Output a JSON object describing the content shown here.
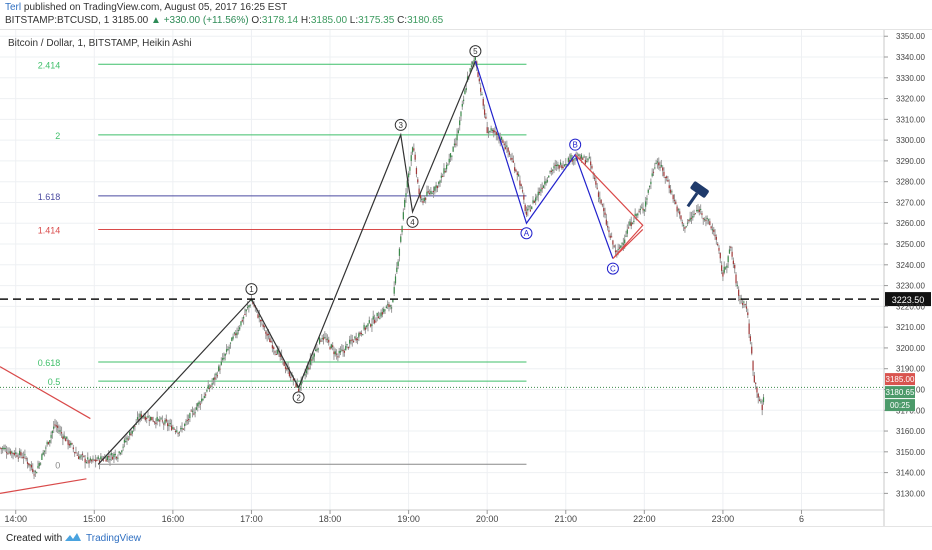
{
  "header": {
    "author": "Terl",
    "published_text": "published on TradingView.com, August 05, 2017 16:25 EST",
    "symbol": "BITSTAMP:BTCUSD, 1",
    "last": "3185.00",
    "change": "+330.00 (+11.56%)",
    "o_label": "O:",
    "o_value": "3178.14",
    "h_label": "H:",
    "h_value": "3185.00",
    "l_label": "L:",
    "l_value": "3175.35",
    "c_label": "C:",
    "c_value": "3180.65"
  },
  "legend": {
    "title": "Bitcoin / Dollar, 1, BITSTAMP, Heikin Ashi"
  },
  "footer": {
    "created_with": "Created with",
    "brand": "TradingView"
  },
  "colors": {
    "up": "#3b8a4a",
    "down": "#a33a3a",
    "grid": "#eef0f3",
    "fib_green": "#3fbf6a",
    "fib_blue": "#4a4aa0",
    "fib_red": "#d94a4a",
    "wave_blue": "#2222cc",
    "gavel": "#1f3a6b"
  },
  "chart_data": {
    "type": "candlestick",
    "title": "Bitcoin / Dollar, 1, BITSTAMP, Heikin Ashi",
    "y_ticks": [
      "3130.00",
      "3140.00",
      "3150.00",
      "3160.00",
      "3170.00",
      "3180.00",
      "3190.00",
      "3200.00",
      "3210.00",
      "3220.00",
      "3230.00",
      "3240.00",
      "3250.00",
      "3260.00",
      "3270.00",
      "3280.00",
      "3290.00",
      "3300.00",
      "3310.00",
      "3320.00",
      "3330.00",
      "3340.00",
      "3350.00"
    ],
    "y_range": [
      3122,
      3353
    ],
    "x_ticks": [
      "14:00",
      "15:00",
      "16:00",
      "17:00",
      "18:00",
      "19:00",
      "20:00",
      "21:00",
      "22:00",
      "23:00",
      "6"
    ],
    "x_range_hours": [
      13.8,
      25.05
    ],
    "price_path": [
      [
        13.8,
        3152
      ],
      [
        14.1,
        3148
      ],
      [
        14.25,
        3140
      ],
      [
        14.5,
        3163
      ],
      [
        14.8,
        3148
      ],
      [
        14.95,
        3145
      ],
      [
        15.3,
        3149
      ],
      [
        15.6,
        3168
      ],
      [
        16.0,
        3162
      ],
      [
        16.1,
        3160
      ],
      [
        16.5,
        3183
      ],
      [
        17.0,
        3223
      ],
      [
        17.2,
        3206
      ],
      [
        17.5,
        3187
      ],
      [
        17.6,
        3180
      ],
      [
        17.9,
        3206
      ],
      [
        18.1,
        3196
      ],
      [
        18.4,
        3208
      ],
      [
        18.8,
        3222
      ],
      [
        18.95,
        3270
      ],
      [
        19.05,
        3298
      ],
      [
        19.15,
        3270
      ],
      [
        19.4,
        3280
      ],
      [
        19.6,
        3298
      ],
      [
        19.75,
        3330
      ],
      [
        19.85,
        3340
      ],
      [
        20.0,
        3305
      ],
      [
        20.2,
        3300
      ],
      [
        20.4,
        3283
      ],
      [
        20.5,
        3264
      ],
      [
        20.8,
        3285
      ],
      [
        21.1,
        3292
      ],
      [
        21.3,
        3290
      ],
      [
        21.45,
        3270
      ],
      [
        21.55,
        3255
      ],
      [
        21.65,
        3245
      ],
      [
        21.85,
        3262
      ],
      [
        22.0,
        3268
      ],
      [
        22.15,
        3291
      ],
      [
        22.3,
        3280
      ],
      [
        22.5,
        3258
      ],
      [
        22.7,
        3267
      ],
      [
        22.9,
        3255
      ],
      [
        23.0,
        3235
      ],
      [
        23.1,
        3248
      ],
      [
        23.2,
        3225
      ],
      [
        23.3,
        3220
      ],
      [
        23.4,
        3185
      ],
      [
        23.5,
        3170
      ],
      [
        23.53,
        3180
      ]
    ],
    "fib_levels": [
      {
        "label": "2.414",
        "value": 3336.5,
        "color": "#3fbf6a"
      },
      {
        "label": "2",
        "value": 3302.5,
        "color": "#3fbf6a"
      },
      {
        "label": "1.618",
        "value": 3273.2,
        "color": "#4a4aa0"
      },
      {
        "label": "1.414",
        "value": 3257.0,
        "color": "#d94a4a"
      },
      {
        "label": "0.618",
        "value": 3193.2,
        "color": "#3fbf6a"
      },
      {
        "label": "0.5",
        "value": 3184.0,
        "color": "#3fbf6a"
      },
      {
        "label": "0",
        "value": 3144.0,
        "color": "#888888"
      }
    ],
    "fib_x_range": [
      15.05,
      20.5
    ],
    "wave_points": [
      {
        "label": "1",
        "x": 17.0,
        "y": 3223.5
      },
      {
        "label": "2",
        "x": 17.6,
        "y": 3181.0
      },
      {
        "label": "3",
        "x": 18.9,
        "y": 3302.5
      },
      {
        "label": "4",
        "x": 19.05,
        "y": 3265.5
      },
      {
        "label": "5",
        "x": 19.85,
        "y": 3338.0
      },
      {
        "label": "A",
        "x": 20.5,
        "y": 3260.0
      },
      {
        "label": "B",
        "x": 21.12,
        "y": 3293.0
      },
      {
        "label": "C",
        "x": 21.6,
        "y": 3243.0
      }
    ],
    "black_wave": [
      [
        15.05,
        3144
      ],
      [
        17.0,
        3223.5
      ],
      [
        17.6,
        3181
      ],
      [
        18.9,
        3302.5
      ],
      [
        19.05,
        3265.5
      ],
      [
        19.85,
        3338
      ]
    ],
    "blue_wave": [
      [
        19.85,
        3338
      ],
      [
        20.5,
        3260
      ],
      [
        21.12,
        3293
      ],
      [
        21.6,
        3243
      ]
    ],
    "red_triangle": [
      [
        21.12,
        3293
      ],
      [
        21.98,
        3259
      ],
      [
        21.6,
        3243
      ],
      [
        21.98,
        3257
      ]
    ],
    "red_trend_left": [
      [
        [
          13.8,
          3191
        ],
        [
          14.95,
          3166
        ]
      ],
      [
        [
          13.8,
          3130
        ],
        [
          14.9,
          3137
        ]
      ]
    ],
    "support_level": {
      "value": "3223.50",
      "y": 3223.5
    },
    "price_labels": [
      {
        "value": "3185.00",
        "y": 3185.0,
        "bg": "#d9544f"
      },
      {
        "value": "3180.65",
        "y": 3180.65,
        "bg": "#4c9a6a"
      },
      {
        "value": "00:25",
        "y": 3177.5,
        "bg": "#4c9a6a"
      }
    ],
    "current_price_dotted": 3181.0
  }
}
